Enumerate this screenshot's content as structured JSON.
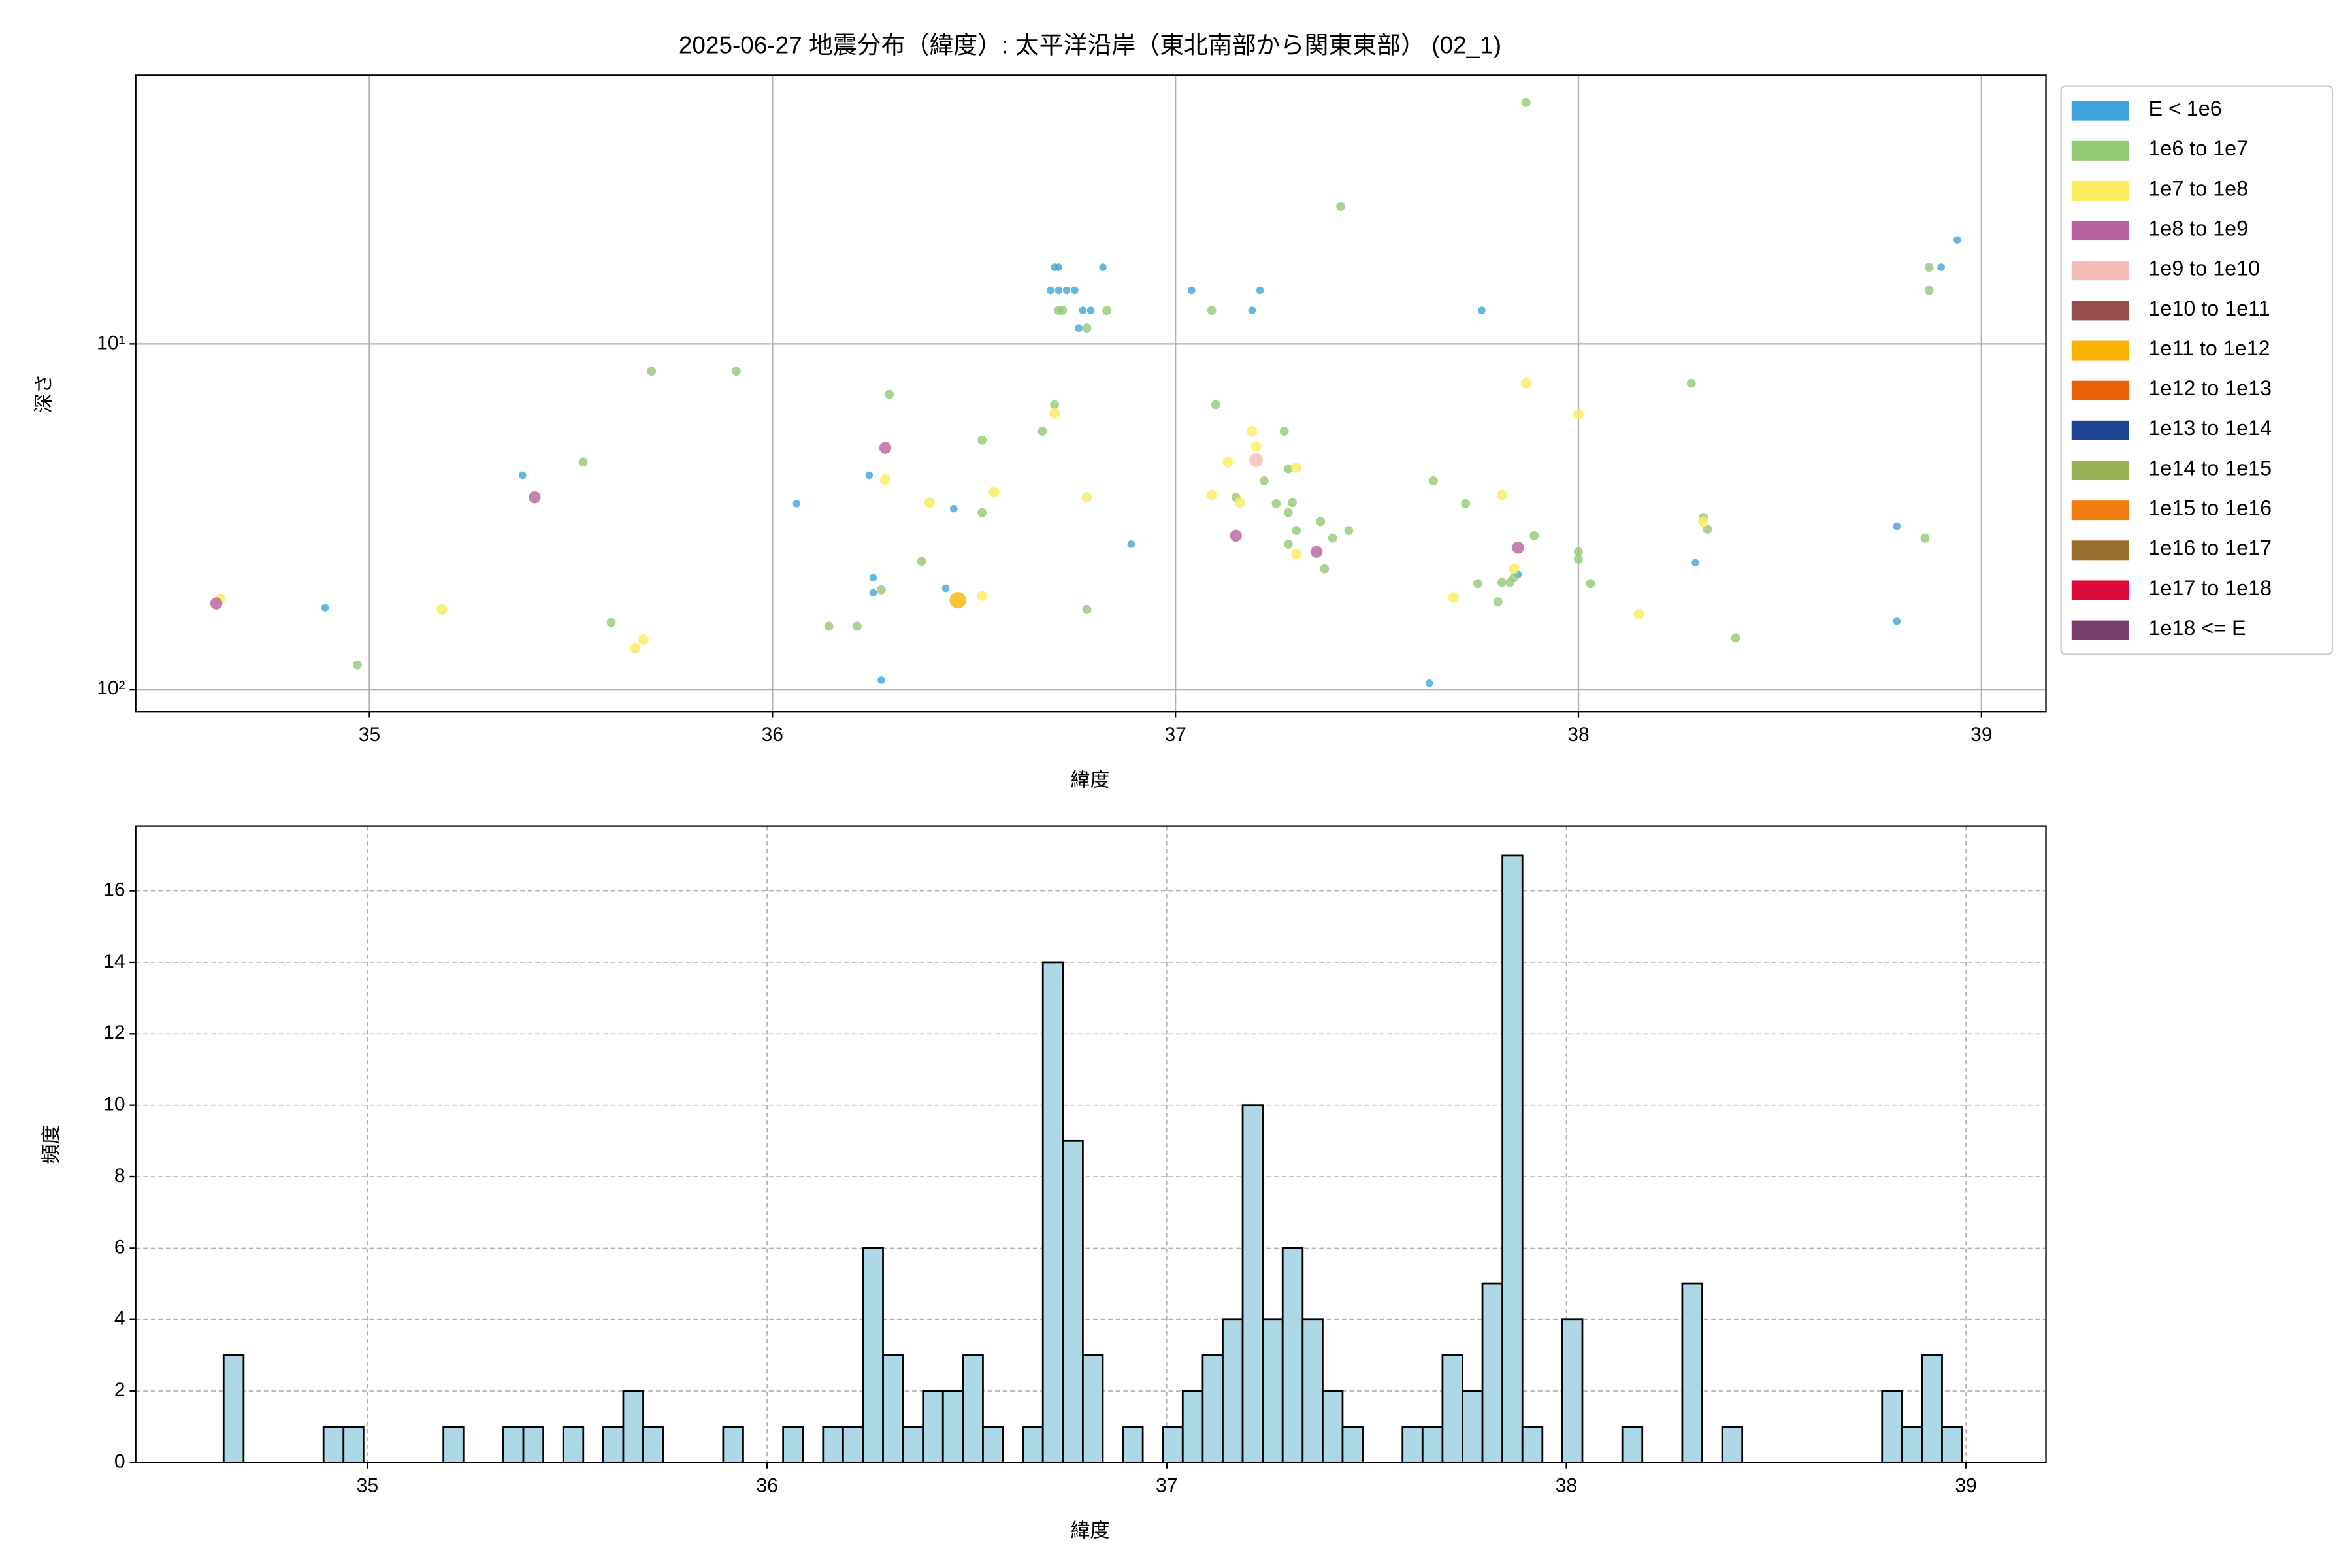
{
  "chart_data": [
    {
      "type": "scatter",
      "title": "2025-06-27 地震分布（緯度）: 太平洋沿岸（東北南部から関東東部） (02_1)",
      "x_label": "緯度",
      "y_label": "深さ",
      "log_y": true,
      "grid": true,
      "legend": "outside-right",
      "xlim": [
        34.42,
        39.16
      ],
      "xticks": [
        35,
        36,
        37,
        38,
        39
      ],
      "ylim": [
        116,
        1.67
      ],
      "yticks": [
        {
          "value": 10,
          "label": "10¹"
        },
        {
          "value": 100,
          "label": "10²"
        }
      ],
      "series": [
        {
          "name": "E < 1e6",
          "color": "#3ea4dc",
          "x": [
            34.89,
            35.38,
            36.06,
            36.24,
            36.25,
            36.25,
            36.27,
            36.43,
            36.45,
            36.69,
            36.7,
            36.71,
            36.71,
            36.73,
            36.75,
            36.76,
            36.77,
            36.79,
            36.82,
            36.89,
            37.04,
            37.19,
            37.21,
            37.63,
            37.76,
            37.85,
            38.29,
            38.79,
            38.79,
            38.9,
            38.94
          ],
          "values": [
            58,
            24,
            29,
            24,
            47.5,
            52.5,
            94,
            51,
            30,
            7,
            6,
            6,
            7,
            7,
            7,
            9,
            8,
            8,
            6,
            38,
            7,
            8,
            7,
            96,
            8,
            46.5,
            43,
            33.7,
            63.5,
            6,
            5
          ]
        },
        {
          "name": "1e6 to 1e7",
          "color": "#92c974",
          "x": [
            34.97,
            35.53,
            35.6,
            35.7,
            35.91,
            36.14,
            36.21,
            36.27,
            36.29,
            36.37,
            36.52,
            36.52,
            36.67,
            36.7,
            36.71,
            36.72,
            36.78,
            36.78,
            36.83,
            37.09,
            37.1,
            37.15,
            37.22,
            37.25,
            37.27,
            37.28,
            37.28,
            37.29,
            37.28,
            37.3,
            37.36,
            37.37,
            37.39,
            37.41,
            37.43,
            37.64,
            37.72,
            37.75,
            37.8,
            37.81,
            37.83,
            37.84,
            37.87,
            37.89,
            38.0,
            38.0,
            38.03,
            38.28,
            38.31,
            38.32,
            38.39,
            38.86,
            38.87,
            38.87
          ],
          "values": [
            85,
            22,
            64,
            12,
            12,
            65.6,
            65.6,
            51.5,
            14,
            42.6,
            19,
            30.8,
            17.9,
            15,
            8,
            8,
            9,
            58.7,
            8,
            8,
            15,
            27.8,
            24.9,
            29,
            17.9,
            23,
            30.8,
            28.8,
            38,
            34.7,
            32.7,
            44.8,
            36.5,
            4,
            34.7,
            24.9,
            29,
            49.4,
            55.8,
            49,
            49,
            47.5,
            2,
            35.9,
            40,
            42,
            49.4,
            13,
            31.8,
            34.4,
            71,
            36.5,
            6,
            7
          ]
        },
        {
          "name": "1e7 to 1e8",
          "color": "#fbec5d",
          "x": [
            34.63,
            35.18,
            35.66,
            35.68,
            36.28,
            36.39,
            36.52,
            36.55,
            36.7,
            36.78,
            37.09,
            37.13,
            37.16,
            37.19,
            37.2,
            37.3,
            37.3,
            37.69,
            37.81,
            37.84,
            37.87,
            38.0,
            38.15,
            38.31
          ],
          "values": [
            54.7,
            58.7,
            76,
            71.8,
            24.7,
            28.8,
            53.6,
            26.8,
            15.9,
            27.8,
            27.4,
            22,
            28.8,
            17.9,
            19.8,
            22.8,
            40.5,
            54.2,
            27.4,
            44.8,
            13,
            16,
            60.5,
            32.7
          ]
        },
        {
          "name": "1e8 to 1e9",
          "color": "#b8629f",
          "x": [
            34.62,
            35.41,
            36.28,
            37.15,
            37.35,
            37.85
          ],
          "values": [
            56.4,
            27.8,
            20,
            35.9,
            40,
            38.9
          ]
        },
        {
          "name": "1e9 to 1e10",
          "color": "#f4bcb8",
          "x": [
            37.2
          ],
          "values": [
            21.7
          ]
        },
        {
          "name": "1e10 to 1e11",
          "color": "#964f4b",
          "x": [],
          "values": []
        },
        {
          "name": "1e11 to 1e12",
          "color": "#f9b402",
          "x": [
            36.46
          ],
          "values": [
            55.2
          ]
        },
        {
          "name": "1e12 to 1e13",
          "color": "#ea6109",
          "x": [],
          "values": []
        },
        {
          "name": "1e13 to 1e14",
          "color": "#1d4591",
          "x": [],
          "values": []
        },
        {
          "name": "1e14 to 1e15",
          "color": "#9ab055",
          "x": [],
          "values": []
        },
        {
          "name": "1e15 to 1e16",
          "color": "#f47d0f",
          "x": [],
          "values": []
        },
        {
          "name": "1e16 to 1e17",
          "color": "#976e2b",
          "x": [],
          "values": []
        },
        {
          "name": "1e17 to 1e18",
          "color": "#dc0a3b",
          "x": [],
          "values": []
        },
        {
          "name": "1e18 <= E",
          "color": "#77406e",
          "x": [],
          "values": []
        }
      ]
    },
    {
      "type": "histogram",
      "x_label": "緯度",
      "y_label": "頻度",
      "grid": true,
      "color": "#add8e6",
      "edgecolor": "#000000",
      "xlim": [
        34.42,
        39.2
      ],
      "xticks": [
        35,
        36,
        37,
        38,
        39
      ],
      "ylim": [
        0,
        17.81
      ],
      "yticks": [
        0,
        2,
        4,
        6,
        8,
        10,
        12,
        14,
        16
      ],
      "bins": [
        34.64,
        34.69,
        34.74,
        34.79,
        34.84,
        34.89,
        34.94,
        34.99,
        35.04,
        35.09,
        35.14,
        35.19,
        35.24,
        35.29,
        35.34,
        35.39,
        35.44,
        35.49,
        35.54,
        35.59,
        35.64,
        35.69,
        35.74,
        35.79,
        35.84,
        35.89,
        35.94,
        35.99,
        36.04,
        36.09,
        36.14,
        36.19,
        36.24,
        36.29,
        36.34,
        36.39,
        36.44,
        36.49,
        36.54,
        36.59,
        36.64,
        36.69,
        36.74,
        36.79,
        36.84,
        36.89,
        36.94,
        36.99,
        37.04,
        37.09,
        37.14,
        37.19,
        37.24,
        37.29,
        37.34,
        37.39,
        37.44,
        37.49,
        37.54,
        37.59,
        37.64,
        37.69,
        37.74,
        37.79,
        37.84,
        37.89,
        37.94,
        37.99,
        38.04,
        38.09,
        38.14,
        38.19,
        38.24,
        38.29,
        38.34,
        38.39,
        38.44,
        38.49,
        38.54,
        38.59,
        38.64,
        38.69,
        38.74,
        38.79,
        38.84,
        38.89,
        38.94,
        38.99
      ],
      "values": [
        3,
        0,
        0,
        0,
        0,
        1,
        1,
        0,
        0,
        0,
        0,
        1,
        0,
        0,
        1,
        1,
        0,
        1,
        0,
        1,
        2,
        1,
        0,
        0,
        0,
        1,
        0,
        0,
        1,
        0,
        1,
        1,
        6,
        3,
        1,
        2,
        2,
        3,
        1,
        0,
        1,
        14,
        9,
        3,
        0,
        1,
        0,
        1,
        2,
        3,
        4,
        10,
        4,
        6,
        4,
        2,
        1,
        0,
        0,
        1,
        1,
        3,
        2,
        5,
        17,
        1,
        0,
        4,
        0,
        0,
        1,
        0,
        0,
        5,
        0,
        1,
        0,
        0,
        0,
        0,
        0,
        0,
        0,
        2,
        1,
        3,
        1
      ]
    }
  ]
}
